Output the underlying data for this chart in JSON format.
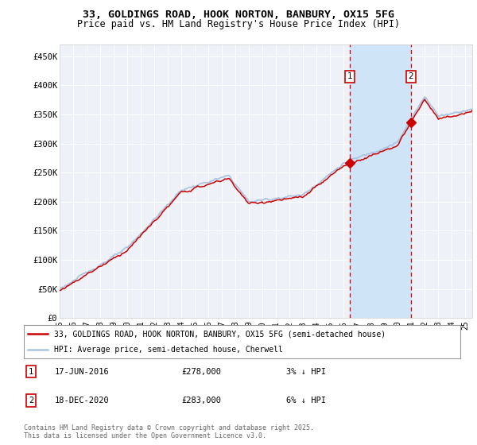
{
  "title_line1": "33, GOLDINGS ROAD, HOOK NORTON, BANBURY, OX15 5FG",
  "title_line2": "Price paid vs. HM Land Registry's House Price Index (HPI)",
  "ylabel_ticks": [
    "£0",
    "£50K",
    "£100K",
    "£150K",
    "£200K",
    "£250K",
    "£300K",
    "£350K",
    "£400K",
    "£450K"
  ],
  "ytick_values": [
    0,
    50000,
    100000,
    150000,
    200000,
    250000,
    300000,
    350000,
    400000,
    450000
  ],
  "ylim": [
    0,
    470000
  ],
  "xlim_start": 1995.0,
  "xlim_end": 2025.5,
  "hpi_color": "#aac4e0",
  "price_color": "#cc0000",
  "sale1_x": 2016.46,
  "sale1_price": 278000,
  "sale2_x": 2020.96,
  "sale2_price": 283000,
  "vline_color": "#cc0000",
  "marker_box_color": "#cc0000",
  "shade_color": "#d0e4f7",
  "legend_line1": "33, GOLDINGS ROAD, HOOK NORTON, BANBURY, OX15 5FG (semi-detached house)",
  "legend_line2": "HPI: Average price, semi-detached house, Cherwell",
  "footer": "Contains HM Land Registry data © Crown copyright and database right 2025.\nThis data is licensed under the Open Government Licence v3.0.",
  "background_plot": "#eef2f8",
  "background_fig": "#ffffff",
  "grid_color": "#ffffff"
}
